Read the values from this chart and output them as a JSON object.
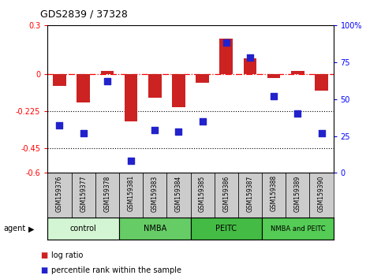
{
  "title": "GDS2839 / 37328",
  "samples": [
    "GSM159376",
    "GSM159377",
    "GSM159378",
    "GSM159381",
    "GSM159383",
    "GSM159384",
    "GSM159385",
    "GSM159386",
    "GSM159387",
    "GSM159388",
    "GSM159389",
    "GSM159390"
  ],
  "log_ratio": [
    -0.07,
    -0.17,
    0.02,
    -0.285,
    -0.14,
    -0.2,
    -0.05,
    0.22,
    0.1,
    -0.02,
    0.02,
    -0.1
  ],
  "percentile_rank": [
    32,
    27,
    62,
    8,
    29,
    28,
    35,
    88,
    78,
    52,
    40,
    27
  ],
  "groups": [
    {
      "label": "control",
      "start": 0,
      "end": 3,
      "color": "#d4f5d4"
    },
    {
      "label": "NMBA",
      "start": 3,
      "end": 6,
      "color": "#66cc66"
    },
    {
      "label": "PEITC",
      "start": 6,
      "end": 9,
      "color": "#44bb44"
    },
    {
      "label": "NMBA and PEITC",
      "start": 9,
      "end": 12,
      "color": "#55cc55"
    }
  ],
  "ylim_left": [
    -0.6,
    0.3
  ],
  "ylim_right": [
    0,
    100
  ],
  "yticks_left": [
    0.3,
    0.0,
    -0.225,
    -0.45,
    -0.6
  ],
  "yticks_right": [
    100,
    75,
    50,
    25,
    0
  ],
  "bar_color": "#cc2222",
  "dot_color": "#2222cc",
  "bar_width": 0.55,
  "dot_size": 28,
  "legend_red": "log ratio",
  "legend_blue": "percentile rank within the sample",
  "agent_label": "agent",
  "background_color": "#ffffff"
}
